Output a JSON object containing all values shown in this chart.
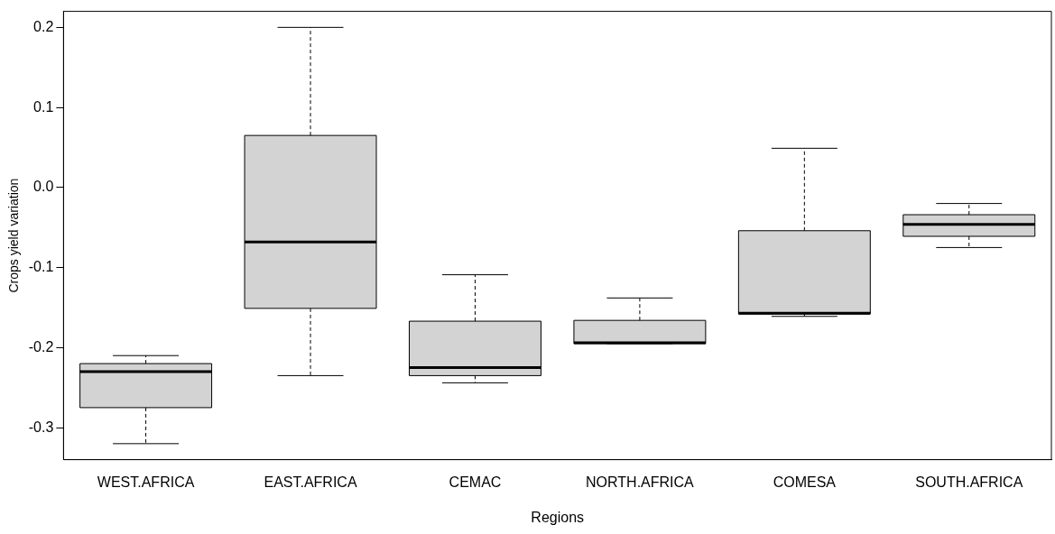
{
  "chart_data": {
    "type": "box",
    "xlabel": "Regions",
    "ylabel": "Crops yield variation",
    "color": "#d3d3d3",
    "categories": [
      "WEST.AFRICA",
      "EAST.AFRICA",
      "CEMAC",
      "NORTH.AFRICA",
      "COMESA",
      "SOUTH.AFRICA"
    ],
    "boxes": [
      {
        "low": -0.32,
        "q1": -0.275,
        "median": -0.23,
        "q3": -0.22,
        "high": -0.21
      },
      {
        "low": -0.235,
        "q1": -0.151,
        "median": -0.068,
        "q3": 0.065,
        "high": 0.2
      },
      {
        "low": -0.244,
        "q1": -0.235,
        "median": -0.225,
        "q3": -0.167,
        "high": -0.109
      },
      {
        "low": -0.195,
        "q1": -0.195,
        "median": -0.194,
        "q3": -0.166,
        "high": -0.138
      },
      {
        "low": -0.161,
        "q1": -0.158,
        "median": -0.157,
        "q3": -0.054,
        "high": 0.049
      },
      {
        "low": -0.075,
        "q1": -0.061,
        "median": -0.046,
        "q3": -0.034,
        "high": -0.02
      }
    ],
    "ylim": [
      -0.34,
      0.22
    ],
    "yticks": [
      -0.3,
      -0.2,
      -0.1,
      {
        "value": 0,
        "label": "0.0"
      },
      0.1,
      0.2
    ],
    "grid": false,
    "legend": false
  }
}
